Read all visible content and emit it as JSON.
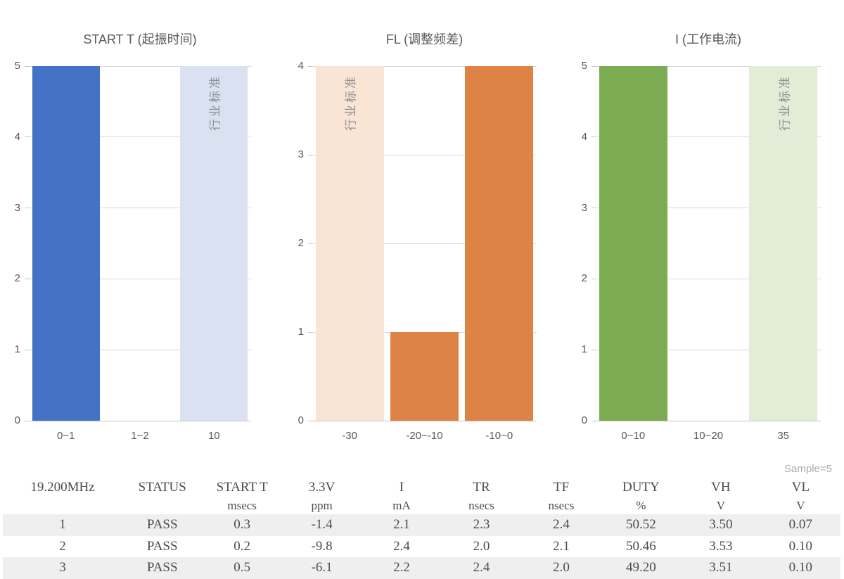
{
  "colors": {
    "background": "#FFFFFF",
    "grid": "#D9D9D9",
    "axis_line": "#C6C6C6",
    "tick_label_text": "#595959",
    "chart_title_text": "#595959",
    "standard_label_text": "#8F9196",
    "table_text": "#4D4D4D",
    "table_stripe": "#EFEFEF",
    "sample_label_text": "#ACACAC",
    "series_blue": "#4472C4",
    "series_blue_light": "#DAE2F1",
    "series_orange": "#DE8245",
    "series_orange_light": "#FAE5D5",
    "series_green": "#7CAC51",
    "series_green_light": "#E2EDD8"
  },
  "chart_data": [
    {
      "type": "bar",
      "title": "START T (起振时间)",
      "categories": [
        "0~1",
        "1~2",
        "10"
      ],
      "values": [
        5,
        0,
        5
      ],
      "ylim": [
        0,
        5
      ],
      "ytick_step": 1,
      "grid": true,
      "legend": "none",
      "bar_colors": [
        "#4472C4",
        "#4472C4",
        "#DAE2F1"
      ],
      "standard_bar_index": 2,
      "standard_label": "行业标准",
      "xlabel": "",
      "ylabel": ""
    },
    {
      "type": "bar",
      "title": "FL (调整频差)",
      "categories": [
        "-30",
        "-20~-10",
        "-10~0"
      ],
      "values": [
        4,
        1,
        4
      ],
      "ylim": [
        0,
        4
      ],
      "ytick_step": 1,
      "grid": true,
      "legend": "none",
      "bar_colors": [
        "#FAE5D5",
        "#DE8245",
        "#DE8245"
      ],
      "standard_bar_index": 0,
      "standard_label": "行业标准",
      "xlabel": "",
      "ylabel": ""
    },
    {
      "type": "bar",
      "title": "I (工作电流)",
      "categories": [
        "0~10",
        "10~20",
        "35"
      ],
      "values": [
        5,
        0,
        5
      ],
      "ylim": [
        0,
        5
      ],
      "ytick_step": 1,
      "grid": true,
      "legend": "none",
      "bar_colors": [
        "#7CAC51",
        "#7CAC51",
        "#E2EDD8"
      ],
      "standard_bar_index": 2,
      "standard_label": "行业标准",
      "xlabel": "",
      "ylabel": ""
    }
  ],
  "table": {
    "sample_label": "Sample=5",
    "columns": [
      {
        "name": "19.200MHz",
        "unit": ""
      },
      {
        "name": "STATUS",
        "unit": ""
      },
      {
        "name": "START T",
        "unit": "msecs"
      },
      {
        "name": "3.3V",
        "unit": "ppm"
      },
      {
        "name": "I",
        "unit": "mA"
      },
      {
        "name": "TR",
        "unit": "nsecs"
      },
      {
        "name": "TF",
        "unit": "nsecs"
      },
      {
        "name": "DUTY",
        "unit": "%"
      },
      {
        "name": "VH",
        "unit": "V"
      },
      {
        "name": "VL",
        "unit": "V"
      }
    ],
    "rows": [
      [
        "1",
        "PASS",
        "0.3",
        "-1.4",
        "2.1",
        "2.3",
        "2.4",
        "50.52",
        "3.50",
        "0.07"
      ],
      [
        "2",
        "PASS",
        "0.2",
        "-9.8",
        "2.4",
        "2.0",
        "2.1",
        "50.46",
        "3.53",
        "0.10"
      ],
      [
        "3",
        "PASS",
        "0.5",
        "-6.1",
        "2.2",
        "2.4",
        "2.0",
        "49.20",
        "3.51",
        "0.10"
      ]
    ]
  }
}
